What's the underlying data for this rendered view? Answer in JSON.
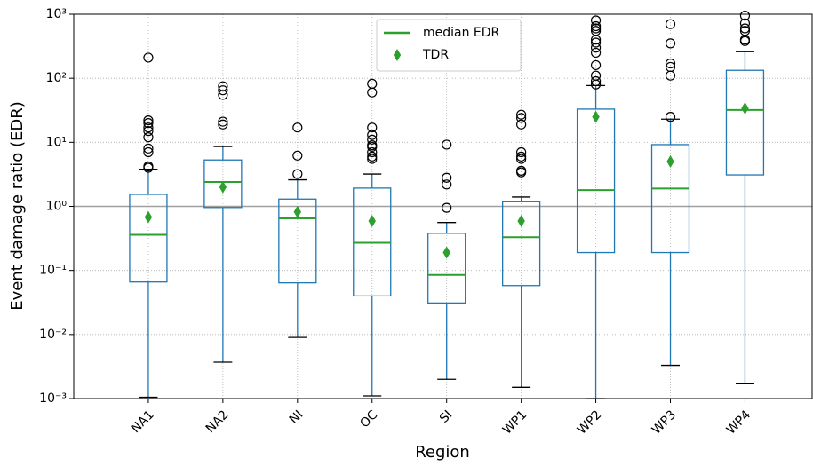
{
  "chart_data": {
    "type": "box",
    "x_label": "Region",
    "y_label": "Event damage ratio (EDR)",
    "log_scale": true,
    "grid": true,
    "legend_position": "upper center",
    "box_color": "#1f77b4",
    "median_color": "#2ca02c",
    "mean_color": "#2ca02c",
    "reference_line": 1,
    "series_labels": {
      "median": "median EDR",
      "mean": "TDR"
    },
    "ylim": [
      0.001,
      1000
    ],
    "yticks": [
      {
        "value": 0.001,
        "label": "10⁻³"
      },
      {
        "value": 0.01,
        "label": "10⁻²"
      },
      {
        "value": 0.1,
        "label": "10⁻¹"
      },
      {
        "value": 1,
        "label": "10⁰"
      },
      {
        "value": 10,
        "label": "10¹"
      },
      {
        "value": 100,
        "label": "10²"
      },
      {
        "value": 1000,
        "label": "10³"
      }
    ],
    "categories": [
      "NA1",
      "NA2",
      "NI",
      "OC",
      "SI",
      "WP1",
      "WP2",
      "WP3",
      "WP4"
    ],
    "boxes": [
      {
        "whislo": 0.00105,
        "q1": 0.066,
        "med": 0.36,
        "q3": 1.54,
        "whishi": 3.8,
        "mean": 0.68,
        "fliers": [
          210,
          22,
          20,
          17,
          15,
          12,
          8,
          7,
          4.2,
          4.0
        ]
      },
      {
        "whislo": 0.0037,
        "q1": 0.96,
        "med": 2.4,
        "q3": 5.3,
        "whishi": 8.6,
        "mean": 2.0,
        "fliers": [
          75,
          65,
          55,
          21,
          19
        ]
      },
      {
        "whislo": 0.009,
        "q1": 0.064,
        "med": 0.65,
        "q3": 1.3,
        "whishi": 2.6,
        "mean": 0.82,
        "fliers": [
          17,
          6.2,
          3.2
        ]
      },
      {
        "whislo": 0.0011,
        "q1": 0.04,
        "med": 0.27,
        "q3": 1.93,
        "whishi": 3.2,
        "mean": 0.59,
        "fliers": [
          82,
          60,
          17,
          13,
          11,
          9,
          8.5,
          7,
          6,
          5.5
        ]
      },
      {
        "whislo": 0.002,
        "q1": 0.031,
        "med": 0.085,
        "q3": 0.38,
        "whishi": 0.56,
        "mean": 0.19,
        "fliers": [
          9.2,
          2.8,
          2.2,
          0.95
        ]
      },
      {
        "whislo": 0.0015,
        "q1": 0.058,
        "med": 0.33,
        "q3": 1.18,
        "whishi": 1.4,
        "mean": 0.59,
        "fliers": [
          27,
          24,
          19,
          7,
          6,
          5.5,
          3.6,
          3.4
        ]
      },
      {
        "whislo": 0.001,
        "q1": 0.19,
        "med": 1.8,
        "q3": 33,
        "whishi": 77,
        "mean": 25,
        "fliers": [
          800,
          650,
          600,
          550,
          400,
          360,
          300,
          250,
          160,
          110,
          90,
          80
        ]
      },
      {
        "whislo": 0.0033,
        "q1": 0.19,
        "med": 1.9,
        "q3": 9.2,
        "whishi": 23,
        "mean": 5.0,
        "fliers": [
          700,
          350,
          170,
          150,
          110,
          25
        ]
      },
      {
        "whislo": 0.0017,
        "q1": 3.1,
        "med": 32,
        "q3": 133,
        "whishi": 260,
        "mean": 34,
        "fliers": [
          950,
          720,
          600,
          550,
          400,
          380
        ]
      }
    ]
  }
}
